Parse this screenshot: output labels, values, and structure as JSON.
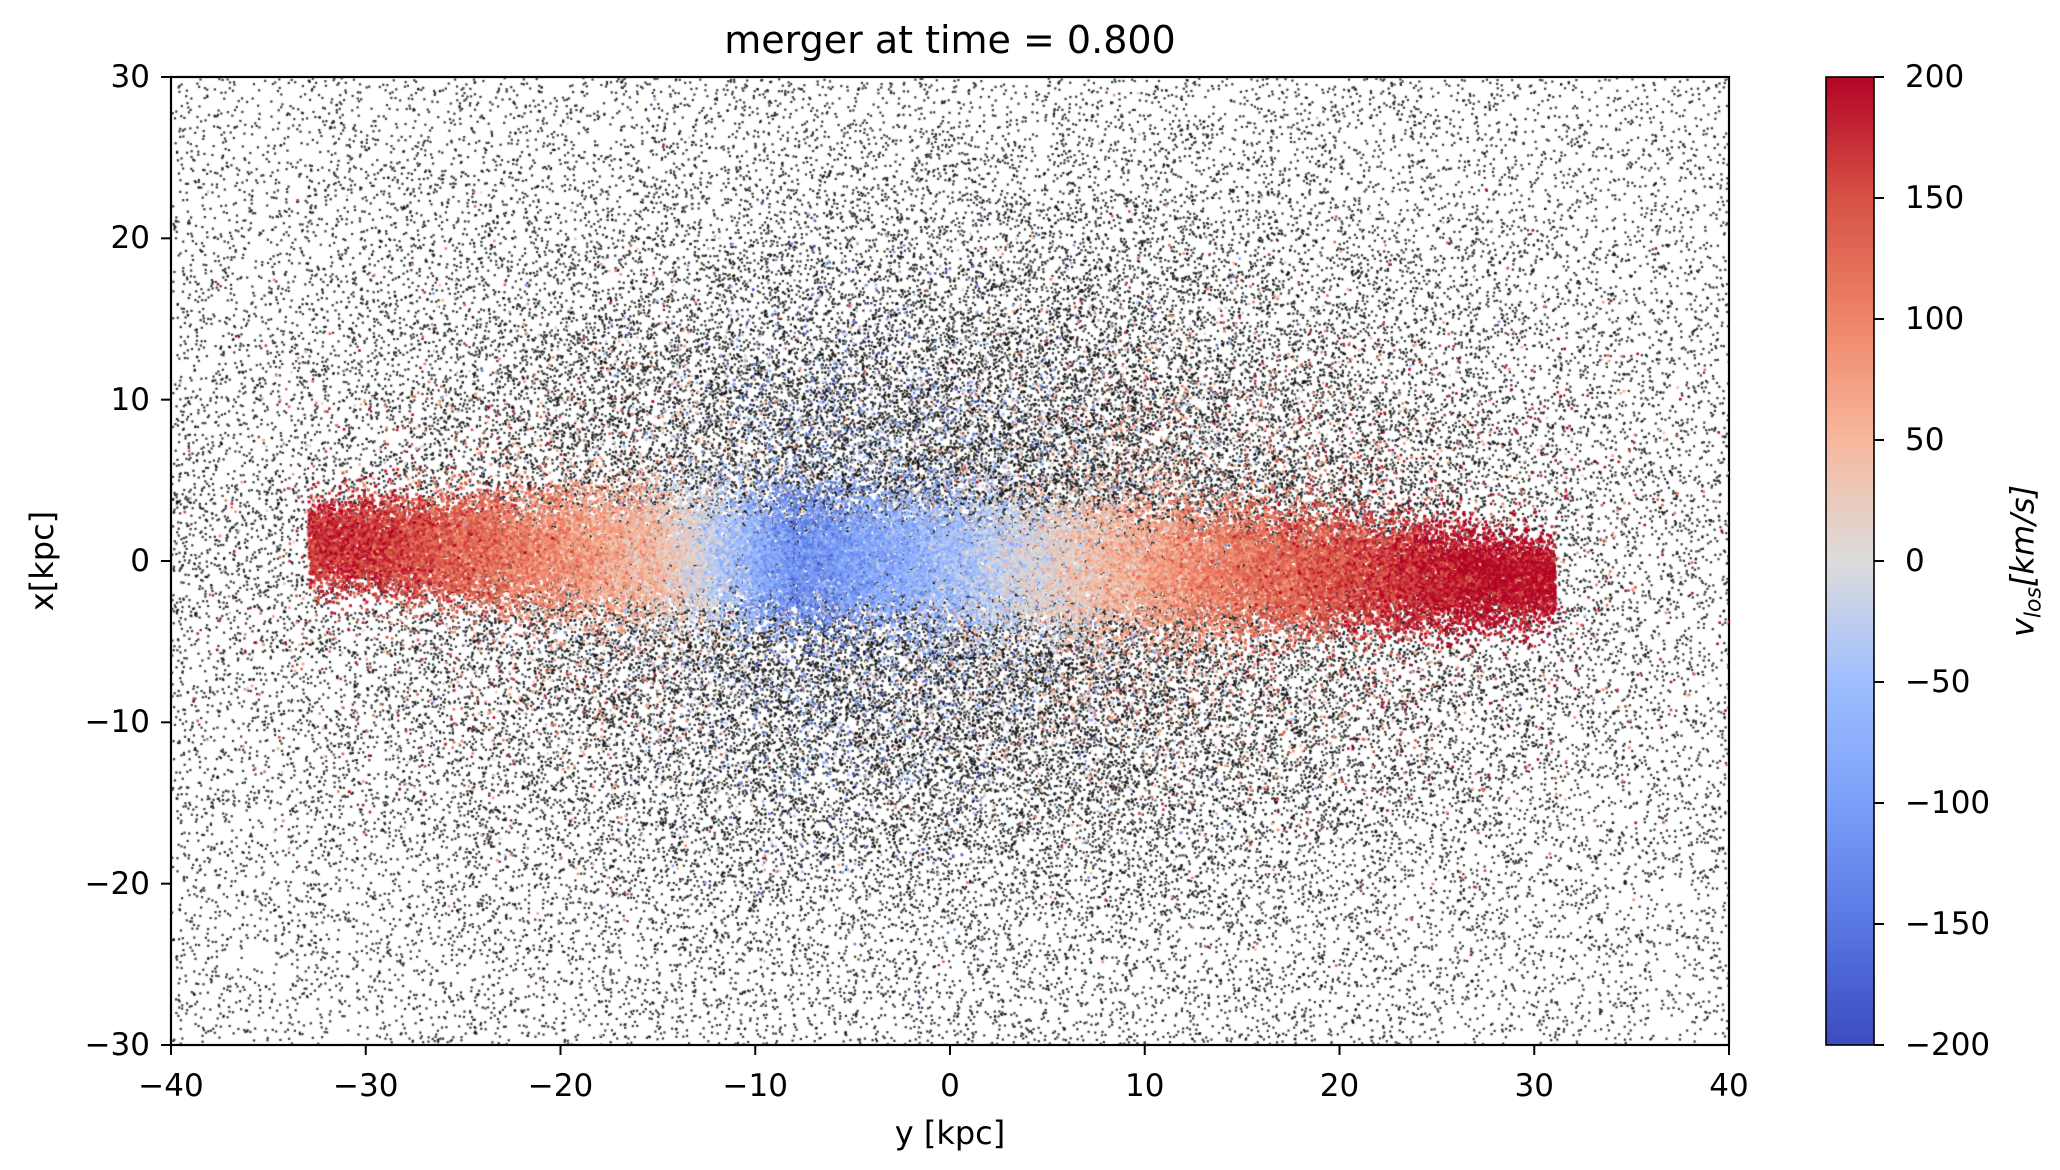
{
  "chart_data": {
    "type": "scatter",
    "title": "merger at time = 0.800",
    "xlabel": "y [kpc]",
    "ylabel": "x[kpc]",
    "xlim": [
      -40,
      40
    ],
    "ylim": [
      -30,
      30
    ],
    "xticks": [
      -40,
      -30,
      -20,
      -10,
      0,
      10,
      20,
      30,
      40
    ],
    "yticks": [
      -30,
      -20,
      -10,
      0,
      10,
      20,
      30
    ],
    "xtick_labels": [
      "−40",
      "−30",
      "−20",
      "−10",
      "0",
      "10",
      "20",
      "30",
      "40"
    ],
    "ytick_labels": [
      "−30",
      "−20",
      "−10",
      "0",
      "10",
      "20",
      "30"
    ],
    "colorbar": {
      "label_main": "v",
      "label_sub": "los",
      "label_unit": "[km/s]",
      "colormap": "coolwarm",
      "range": [
        -200,
        200
      ],
      "ticks": [
        -200,
        -150,
        -100,
        -50,
        0,
        50,
        100,
        150,
        200
      ],
      "tick_labels": [
        "−200",
        "−150",
        "−100",
        "−50",
        "0",
        "50",
        "100",
        "150",
        "200"
      ]
    },
    "series": [
      {
        "name": "halo particles (no velocity color)",
        "color": "#000000",
        "distribution": "ellipsoidal cloud filling the axes, denser toward center"
      },
      {
        "name": "disk particles colored by v_los",
        "distribution": "thin elongated disk from y = -33 to y = +31 kpc, |x| < 5 kpc",
        "velocity_profile": [
          {
            "y": -30,
            "v_los": 170
          },
          {
            "y": -20,
            "v_los": 90
          },
          {
            "y": -15,
            "v_los": 40
          },
          {
            "y": -8,
            "v_los": -120
          },
          {
            "y": 0,
            "v_los": -50
          },
          {
            "y": 5,
            "v_los": 10
          },
          {
            "y": 12,
            "v_los": 90
          },
          {
            "y": 20,
            "v_los": 150
          },
          {
            "y": 27,
            "v_los": 200
          }
        ]
      }
    ]
  }
}
